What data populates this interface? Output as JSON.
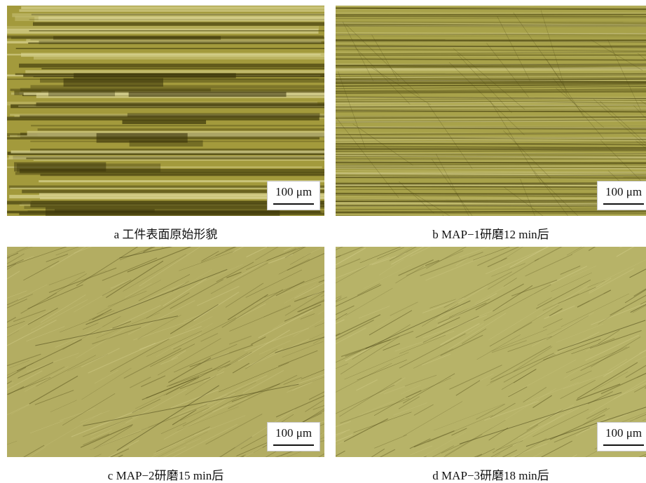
{
  "panels": [
    {
      "id": "a",
      "caption": "a  工件表面原始形貌",
      "scale_label": "100 μm",
      "texture": "coarse"
    },
    {
      "id": "b",
      "caption": "b  MAP−1研磨12 min后",
      "scale_label": "100 μm",
      "texture": "medium"
    },
    {
      "id": "c",
      "caption": "c  MAP−2研磨15 min后",
      "scale_label": "100 μm",
      "texture": "fine"
    },
    {
      "id": "d",
      "caption": "d  MAP−3研磨18 min后",
      "scale_label": "100 μm",
      "texture": "finest"
    }
  ],
  "colors": {
    "coarse_base": "#a39a3c",
    "medium_base": "#a8a24a",
    "fine_base": "#b3ad62",
    "finest_base": "#b7b368",
    "scratch_dark": "#4a4410",
    "scratch_light": "#d8d290"
  }
}
